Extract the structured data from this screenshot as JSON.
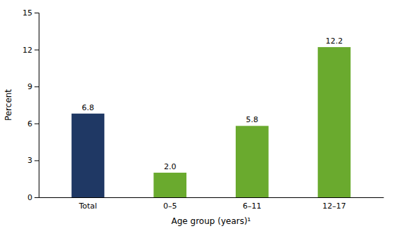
{
  "chart_data": {
    "type": "bar",
    "categories": [
      "Total",
      "0–5",
      "6–11",
      "12–17"
    ],
    "values": [
      6.8,
      2.0,
      5.8,
      12.2
    ],
    "value_labels": [
      "6.8",
      "2.0",
      "5.8",
      "12.2"
    ],
    "colors": [
      "#1f3864",
      "#6aaa2e",
      "#6aaa2e",
      "#6aaa2e"
    ],
    "xlabel": "Age group (years)¹",
    "ylabel": "Percent",
    "ylim": [
      0,
      15
    ],
    "yticks": [
      0,
      3,
      6,
      9,
      12,
      15
    ],
    "data_labels": true,
    "grid": false
  }
}
